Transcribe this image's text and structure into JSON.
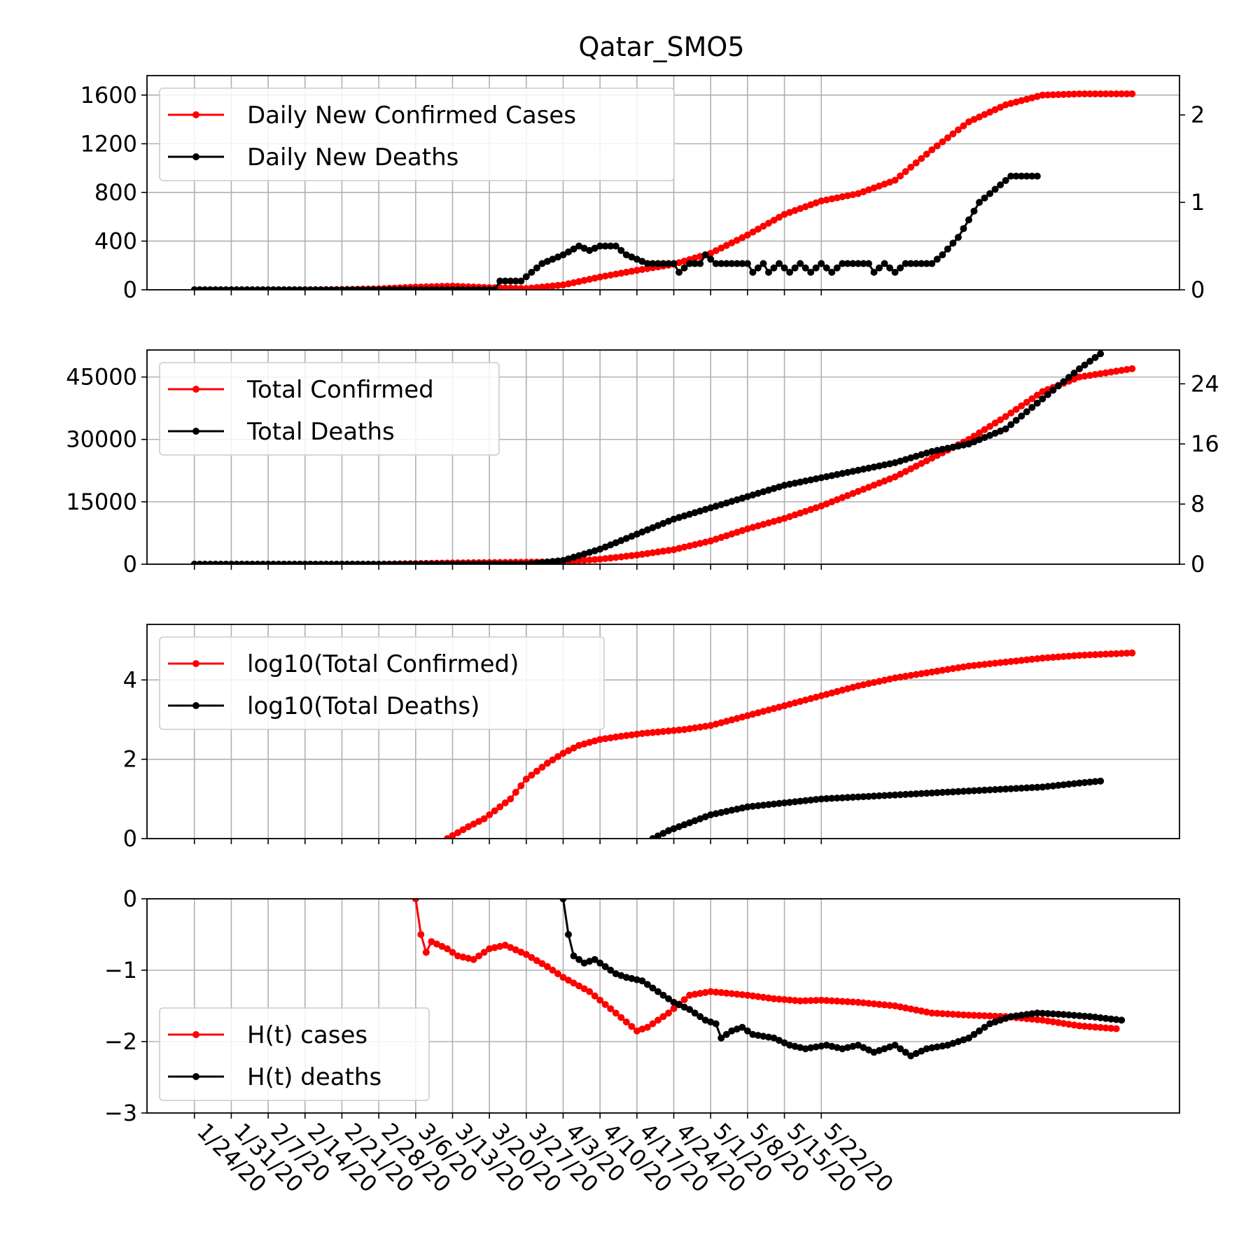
{
  "figure": {
    "title": "Qatar_SMO5",
    "x_dates": [
      "1/24/20",
      "1/31/20",
      "2/7/20",
      "2/14/20",
      "2/21/20",
      "2/28/20",
      "3/6/20",
      "3/13/20",
      "3/20/20",
      "3/27/20",
      "4/3/20",
      "4/10/20",
      "4/17/20",
      "4/24/20",
      "5/1/20",
      "5/8/20",
      "5/15/20",
      "5/22/20"
    ],
    "x_day_range": [
      -9,
      187
    ]
  },
  "colors": {
    "cases": "#ff0000",
    "deaths": "#000000",
    "grid": "#b0b0b0"
  },
  "chart_data": [
    {
      "type": "line",
      "panel": "daily",
      "title": "Qatar_SMO5",
      "ylim": [
        0,
        1760
      ],
      "yticks": [
        0,
        400,
        800,
        1200,
        1600
      ],
      "y2lim": [
        0,
        2.45
      ],
      "y2ticks": [
        0,
        1,
        2
      ],
      "legend_position": "upper left",
      "series": [
        {
          "name": "Daily New Confirmed Cases",
          "axis": "left",
          "color": "#ff0000",
          "points": [
            [
              0,
              0
            ],
            [
              7,
              0
            ],
            [
              14,
              0
            ],
            [
              21,
              0
            ],
            [
              28,
              2
            ],
            [
              35,
              8
            ],
            [
              42,
              22
            ],
            [
              49,
              30
            ],
            [
              56,
              18
            ],
            [
              63,
              10
            ],
            [
              70,
              40
            ],
            [
              77,
              105
            ],
            [
              84,
              160
            ],
            [
              91,
              210
            ],
            [
              98,
              300
            ],
            [
              105,
              450
            ],
            [
              112,
              620
            ],
            [
              119,
              730
            ],
            [
              126,
              790
            ],
            [
              133,
              900
            ],
            [
              140,
              1150
            ],
            [
              147,
              1380
            ],
            [
              154,
              1520
            ],
            [
              161,
              1600
            ],
            [
              168,
              1610
            ],
            [
              178,
              1610
            ]
          ]
        },
        {
          "name": "Daily New Deaths",
          "axis": "right",
          "color": "#000000",
          "points": [
            [
              0,
              0
            ],
            [
              40,
              0
            ],
            [
              57,
              0
            ],
            [
              58,
              0.1
            ],
            [
              62,
              0.1
            ],
            [
              64,
              0.2
            ],
            [
              66,
              0.3
            ],
            [
              70,
              0.4
            ],
            [
              73,
              0.5
            ],
            [
              75,
              0.45
            ],
            [
              77,
              0.5
            ],
            [
              80,
              0.5
            ],
            [
              82,
              0.4
            ],
            [
              86,
              0.3
            ],
            [
              91,
              0.3
            ],
            [
              92,
              0.2
            ],
            [
              94,
              0.3
            ],
            [
              96,
              0.3
            ],
            [
              97,
              0.4
            ],
            [
              99,
              0.3
            ],
            [
              105,
              0.3
            ],
            [
              106,
              0.2
            ],
            [
              108,
              0.3
            ],
            [
              109,
              0.2
            ],
            [
              111,
              0.3
            ],
            [
              113,
              0.2
            ],
            [
              115,
              0.3
            ],
            [
              117,
              0.2
            ],
            [
              119,
              0.3
            ],
            [
              121,
              0.2
            ],
            [
              123,
              0.3
            ],
            [
              128,
              0.3
            ],
            [
              129,
              0.2
            ],
            [
              131,
              0.3
            ],
            [
              133,
              0.2
            ],
            [
              135,
              0.3
            ],
            [
              140,
              0.3
            ],
            [
              142,
              0.4
            ],
            [
              145,
              0.6
            ],
            [
              147,
              0.8
            ],
            [
              149,
              1.0
            ],
            [
              151,
              1.1
            ],
            [
              153,
              1.2
            ],
            [
              155,
              1.3
            ],
            [
              160,
              1.3
            ]
          ]
        }
      ]
    },
    {
      "type": "line",
      "panel": "total",
      "ylim": [
        0,
        51500
      ],
      "yticks": [
        0,
        15000,
        30000,
        45000
      ],
      "y2lim": [
        0,
        28.5
      ],
      "y2ticks": [
        0,
        8,
        16,
        24
      ],
      "legend_position": "upper left",
      "series": [
        {
          "name": "Total Confirmed",
          "axis": "left",
          "color": "#ff0000",
          "points": [
            [
              0,
              0
            ],
            [
              35,
              1
            ],
            [
              49,
              300
            ],
            [
              63,
              480
            ],
            [
              70,
              600
            ],
            [
              77,
              1200
            ],
            [
              84,
              2200
            ],
            [
              91,
              3500
            ],
            [
              98,
              5600
            ],
            [
              105,
              8500
            ],
            [
              112,
              11000
            ],
            [
              119,
              14000
            ],
            [
              126,
              17500
            ],
            [
              133,
              21000
            ],
            [
              140,
              25500
            ],
            [
              147,
              30000
            ],
            [
              154,
              35500
            ],
            [
              161,
              41500
            ],
            [
              168,
              45000
            ],
            [
              178,
              47000
            ]
          ]
        },
        {
          "name": "Total Deaths",
          "axis": "right",
          "color": "#000000",
          "points": [
            [
              0,
              0
            ],
            [
              49,
              0
            ],
            [
              63,
              0
            ],
            [
              70,
              0.5
            ],
            [
              77,
              2
            ],
            [
              84,
              4
            ],
            [
              91,
              6
            ],
            [
              98,
              7.5
            ],
            [
              105,
              9
            ],
            [
              112,
              10.5
            ],
            [
              119,
              11.5
            ],
            [
              126,
              12.5
            ],
            [
              133,
              13.5
            ],
            [
              140,
              15
            ],
            [
              147,
              16
            ],
            [
              154,
              18
            ],
            [
              161,
              22
            ],
            [
              168,
              26
            ],
            [
              172,
              28
            ]
          ]
        }
      ]
    },
    {
      "type": "line",
      "panel": "log",
      "ylim": [
        0,
        5.4
      ],
      "yticks": [
        0,
        2,
        4
      ],
      "legend_position": "upper left",
      "series": [
        {
          "name": "log10(Total Confirmed)",
          "axis": "left",
          "color": "#ff0000",
          "points": [
            [
              48,
              0
            ],
            [
              50,
              0.15
            ],
            [
              52,
              0.3
            ],
            [
              55,
              0.5
            ],
            [
              57,
              0.7
            ],
            [
              60,
              1.0
            ],
            [
              63,
              1.5
            ],
            [
              67,
              1.9
            ],
            [
              70,
              2.15
            ],
            [
              73,
              2.35
            ],
            [
              77,
              2.5
            ],
            [
              81,
              2.58
            ],
            [
              85,
              2.65
            ],
            [
              89,
              2.7
            ],
            [
              93,
              2.75
            ],
            [
              98,
              2.85
            ],
            [
              105,
              3.1
            ],
            [
              112,
              3.35
            ],
            [
              119,
              3.6
            ],
            [
              126,
              3.85
            ],
            [
              133,
              4.05
            ],
            [
              140,
              4.2
            ],
            [
              147,
              4.35
            ],
            [
              154,
              4.45
            ],
            [
              161,
              4.55
            ],
            [
              168,
              4.62
            ],
            [
              178,
              4.68
            ]
          ]
        },
        {
          "name": "log10(Total Deaths)",
          "axis": "left",
          "color": "#000000",
          "points": [
            [
              87,
              0
            ],
            [
              90,
              0.2
            ],
            [
              94,
              0.4
            ],
            [
              98,
              0.6
            ],
            [
              105,
              0.8
            ],
            [
              112,
              0.9
            ],
            [
              119,
              1.0
            ],
            [
              126,
              1.05
            ],
            [
              133,
              1.1
            ],
            [
              140,
              1.15
            ],
            [
              147,
              1.2
            ],
            [
              154,
              1.25
            ],
            [
              161,
              1.3
            ],
            [
              168,
              1.4
            ],
            [
              172,
              1.45
            ]
          ]
        }
      ]
    },
    {
      "type": "line",
      "panel": "hurst",
      "ylim": [
        -3,
        0
      ],
      "yticks": [
        0,
        -1,
        -2,
        -3
      ],
      "ytick_labels": [
        "0",
        "−1",
        "−2",
        "−3"
      ],
      "legend_position": "lower left",
      "series": [
        {
          "name": "H(t) cases",
          "axis": "left",
          "color": "#ff0000",
          "points": [
            [
              42,
              0
            ],
            [
              43,
              -0.5
            ],
            [
              44,
              -0.75
            ],
            [
              45,
              -0.6
            ],
            [
              48,
              -0.7
            ],
            [
              50,
              -0.8
            ],
            [
              53,
              -0.85
            ],
            [
              56,
              -0.7
            ],
            [
              59,
              -0.65
            ],
            [
              63,
              -0.78
            ],
            [
              67,
              -0.95
            ],
            [
              70,
              -1.1
            ],
            [
              75,
              -1.3
            ],
            [
              80,
              -1.6
            ],
            [
              84,
              -1.85
            ],
            [
              86,
              -1.8
            ],
            [
              90,
              -1.6
            ],
            [
              94,
              -1.35
            ],
            [
              98,
              -1.3
            ],
            [
              105,
              -1.35
            ],
            [
              110,
              -1.4
            ],
            [
              115,
              -1.43
            ],
            [
              119,
              -1.42
            ],
            [
              126,
              -1.45
            ],
            [
              133,
              -1.5
            ],
            [
              140,
              -1.6
            ],
            [
              147,
              -1.63
            ],
            [
              154,
              -1.65
            ],
            [
              161,
              -1.7
            ],
            [
              168,
              -1.78
            ],
            [
              175,
              -1.82
            ]
          ]
        },
        {
          "name": "H(t) deaths",
          "axis": "left",
          "color": "#000000",
          "points": [
            [
              70,
              0
            ],
            [
              71,
              -0.5
            ],
            [
              72,
              -0.8
            ],
            [
              74,
              -0.9
            ],
            [
              76,
              -0.85
            ],
            [
              78,
              -0.95
            ],
            [
              80,
              -1.05
            ],
            [
              82,
              -1.1
            ],
            [
              85,
              -1.15
            ],
            [
              88,
              -1.3
            ],
            [
              91,
              -1.45
            ],
            [
              94,
              -1.55
            ],
            [
              97,
              -1.7
            ],
            [
              99,
              -1.75
            ],
            [
              100,
              -1.95
            ],
            [
              102,
              -1.85
            ],
            [
              104,
              -1.8
            ],
            [
              106,
              -1.9
            ],
            [
              110,
              -1.95
            ],
            [
              113,
              -2.05
            ],
            [
              116,
              -2.1
            ],
            [
              120,
              -2.05
            ],
            [
              123,
              -2.1
            ],
            [
              126,
              -2.05
            ],
            [
              129,
              -2.15
            ],
            [
              133,
              -2.05
            ],
            [
              136,
              -2.2
            ],
            [
              139,
              -2.1
            ],
            [
              143,
              -2.05
            ],
            [
              147,
              -1.95
            ],
            [
              151,
              -1.75
            ],
            [
              155,
              -1.65
            ],
            [
              160,
              -1.6
            ],
            [
              165,
              -1.62
            ],
            [
              170,
              -1.65
            ],
            [
              176,
              -1.7
            ]
          ]
        }
      ]
    }
  ]
}
